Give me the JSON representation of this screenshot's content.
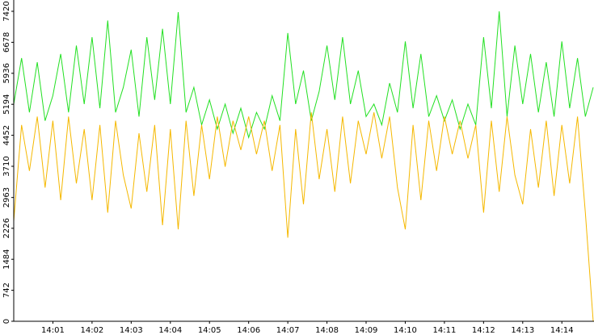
{
  "chart_data": {
    "type": "line",
    "x": [
      0,
      0.2,
      0.4,
      0.6,
      0.8,
      1,
      1.2,
      1.4,
      1.6,
      1.8,
      2,
      2.2,
      2.4,
      2.6,
      2.8,
      3,
      3.2,
      3.4,
      3.6,
      3.8,
      4,
      4.2,
      4.4,
      4.6,
      4.8,
      5,
      5.2,
      5.4,
      5.6,
      5.8,
      6,
      6.2,
      6.4,
      6.6,
      6.8,
      7,
      7.2,
      7.4,
      7.6,
      7.8,
      8,
      8.2,
      8.4,
      8.6,
      8.8,
      9,
      9.2,
      9.4,
      9.6,
      9.8,
      10,
      10.2,
      10.4,
      10.6,
      10.8,
      11,
      11.2,
      11.4,
      11.6,
      11.8,
      12,
      12.2,
      12.4,
      12.6,
      12.8,
      13,
      13.2,
      13.4,
      13.6,
      13.8,
      14,
      14.2,
      14.4,
      14.6,
      14.8
    ],
    "series": [
      {
        "color": "#22e022",
        "values": [
          5200,
          6300,
          5000,
          6200,
          4800,
          5400,
          6400,
          5000,
          6600,
          5200,
          6800,
          5100,
          7200,
          5000,
          5600,
          6500,
          4900,
          6800,
          5300,
          7000,
          5200,
          7400,
          5000,
          5600,
          4700,
          5300,
          4600,
          5200,
          4500,
          5100,
          4400,
          5000,
          4600,
          5400,
          4800,
          6900,
          5200,
          6000,
          4800,
          5500,
          6600,
          5300,
          6800,
          5200,
          6000,
          4900,
          5200,
          4700,
          5700,
          5000,
          6700,
          5100,
          6400,
          4900,
          5400,
          4800,
          5300,
          4600,
          5200,
          4700,
          6800,
          5100,
          7420,
          4900,
          6600,
          5200,
          6400,
          5000,
          6200,
          4900,
          6700,
          5100,
          6300,
          4900,
          5600
        ]
      },
      {
        "color": "#f5b800",
        "values": [
          2400,
          4700,
          3600,
          4900,
          3200,
          4800,
          2900,
          4900,
          3300,
          4600,
          2900,
          4700,
          2600,
          4800,
          3500,
          2700,
          4500,
          3100,
          4700,
          2300,
          4600,
          2200,
          4800,
          3000,
          4700,
          3400,
          4900,
          3700,
          4800,
          4100,
          4900,
          4000,
          4800,
          3600,
          4700,
          2000,
          4600,
          2800,
          5000,
          3400,
          4600,
          3100,
          4900,
          3300,
          4800,
          4000,
          5000,
          3900,
          4900,
          3200,
          2200,
          4700,
          2900,
          4800,
          3600,
          4900,
          4000,
          4800,
          3900,
          4700,
          2600,
          4800,
          3100,
          4900,
          3500,
          2800,
          4600,
          3200,
          4800,
          3000,
          4700,
          3300,
          4900,
          2600,
          0
        ]
      }
    ],
    "xlim": [
      0,
      14.8
    ],
    "xticks": [
      {
        "value": 1,
        "label": "14:01"
      },
      {
        "value": 2,
        "label": "14:02"
      },
      {
        "value": 3,
        "label": "14:03"
      },
      {
        "value": 4,
        "label": "14:04"
      },
      {
        "value": 5,
        "label": "14:05"
      },
      {
        "value": 6,
        "label": "14:06"
      },
      {
        "value": 7,
        "label": "14:07"
      },
      {
        "value": 8,
        "label": "14:08"
      },
      {
        "value": 9,
        "label": "14:09"
      },
      {
        "value": 10,
        "label": "14:10"
      },
      {
        "value": 11,
        "label": "14:11"
      },
      {
        "value": 12,
        "label": "14:12"
      },
      {
        "value": 13,
        "label": "14:13"
      },
      {
        "value": 14,
        "label": "14:14"
      }
    ],
    "ylim": [
      0,
      7420
    ],
    "yticks": [
      0,
      742,
      1484,
      2226,
      2963,
      3710,
      4452,
      5194,
      5936,
      6678,
      7420
    ]
  }
}
